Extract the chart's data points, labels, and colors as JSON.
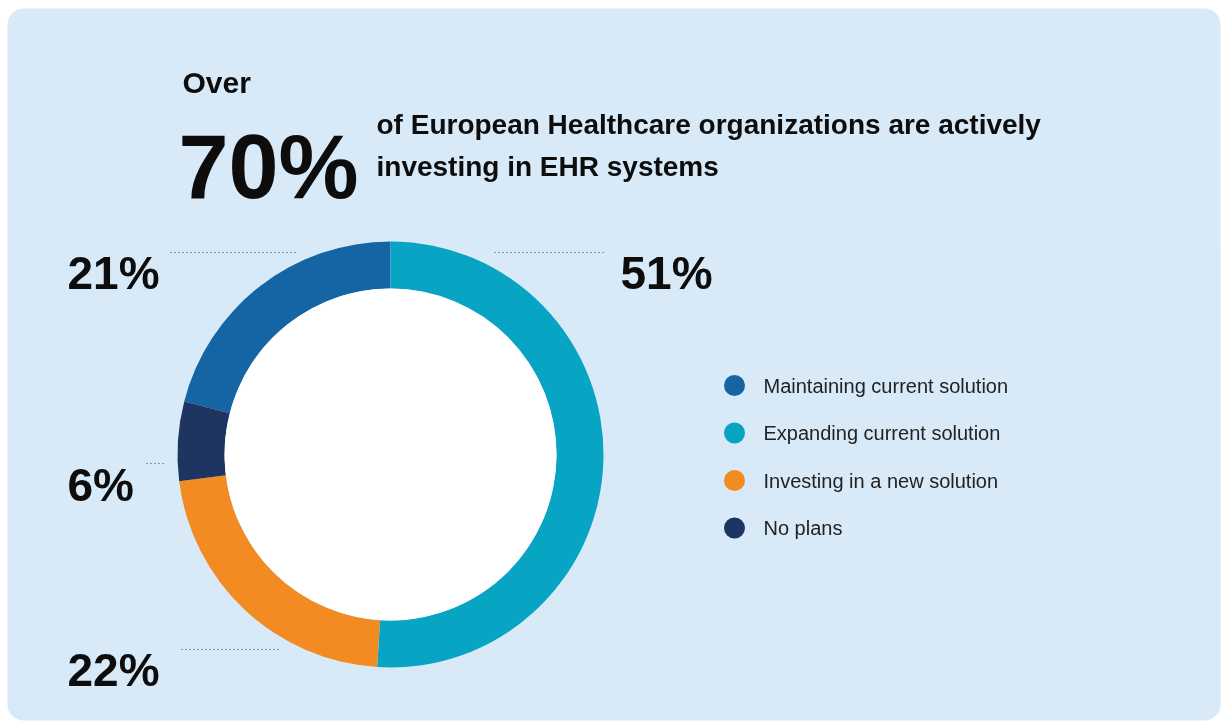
{
  "chart_data": {
    "type": "donut",
    "title": "Over 70%",
    "subtitle": "of European Healthcare organizations are actively investing in EHR systems",
    "categories": [
      "Maintaining current solution",
      "Expanding current solution",
      "Investing in a new solution",
      "No plans"
    ],
    "values": [
      21,
      51,
      22,
      6
    ],
    "colors": [
      "#1565a4",
      "#08a4c3",
      "#f28c22",
      "#1e3461"
    ],
    "value_labels": [
      "21%",
      "51%",
      "22%",
      "6%"
    ],
    "legend": "right"
  }
}
